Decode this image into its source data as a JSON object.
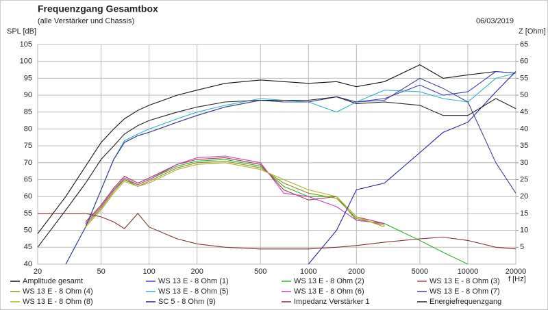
{
  "chart_data": {
    "type": "line",
    "title": "Frequenzgang Gesamtbox",
    "subtitle": "(alle Verstärker und Chassis)",
    "date": "06/03/2019",
    "ylabel": "SPL [dB]",
    "y2label": "Z [Ohm]",
    "xlabel": "f [Hz]",
    "xscale": "log",
    "grid": true,
    "legend": "bottom",
    "x": [
      20,
      30,
      40,
      50,
      60,
      70,
      85,
      100,
      150,
      200,
      300,
      500,
      700,
      1000,
      1500,
      2000,
      3000,
      5000,
      7000,
      10000,
      15000,
      20000
    ],
    "xlim": [
      20,
      20000
    ],
    "xticks": [
      20,
      50,
      100,
      200,
      500,
      1000,
      2000,
      5000,
      10000,
      20000
    ],
    "ylim": [
      40,
      105
    ],
    "yticks": [
      40,
      45,
      50,
      55,
      60,
      65,
      70,
      75,
      80,
      85,
      90,
      95,
      100,
      105
    ],
    "y2lim": [
      0,
      65
    ],
    "y2ticks": [
      5,
      10,
      15,
      20,
      25,
      30,
      35,
      40,
      45,
      50,
      55,
      60,
      65
    ],
    "series": [
      {
        "name": "Amplitude gesamt",
        "color": "#111111",
        "values": [
          49,
          60,
          69,
          76,
          80,
          83,
          85.5,
          87,
          90,
          91.5,
          93.5,
          94.5,
          94,
          93.5,
          94,
          92.5,
          94,
          99,
          95,
          96,
          97,
          96.5
        ]
      },
      {
        "name": "WS 13 E - 8 Ohm (1)",
        "color": "#3a3ad0",
        "values": [
          null,
          40,
          51,
          62,
          71,
          76,
          78,
          79,
          82,
          84,
          86.5,
          88.5,
          88,
          88,
          89.5,
          88,
          89,
          93,
          90,
          91,
          97,
          96.5
        ]
      },
      {
        "name": "WS 13 E - 8 Ohm (2)",
        "color": "#30b030",
        "values": [
          null,
          null,
          52,
          57,
          62,
          65,
          63.5,
          65,
          69,
          70.5,
          71,
          69,
          63,
          60,
          60,
          53,
          52,
          47,
          43.5,
          40,
          null,
          null
        ]
      },
      {
        "name": "WS 13 E - 8 Ohm (3)",
        "color": "#a04040",
        "values": [
          null,
          null,
          52.5,
          57.5,
          62.5,
          66,
          64,
          65.5,
          69.5,
          71,
          71.5,
          69.5,
          62,
          59,
          60,
          54,
          52,
          null,
          null,
          null,
          null,
          null
        ]
      },
      {
        "name": "WS 13 E - 8 Ohm (4)",
        "color": "#909020",
        "values": [
          null,
          null,
          51.5,
          56.5,
          61.5,
          65,
          63,
          64.5,
          68.5,
          70,
          70.5,
          68.5,
          64,
          61,
          59.5,
          53.5,
          51.5,
          null,
          null,
          null,
          null,
          null
        ]
      },
      {
        "name": "WS 13 E - 8 Ohm (5)",
        "color": "#30b0d0",
        "values": [
          null,
          40,
          51,
          62,
          71,
          76.5,
          78.5,
          80,
          83,
          85,
          87,
          89,
          88.5,
          88,
          85,
          88,
          91.5,
          91,
          89,
          88,
          95,
          96.5
        ]
      },
      {
        "name": "WS 13 E - 8 Ohm (6)",
        "color": "#c040c0",
        "values": [
          null,
          null,
          52,
          57,
          62,
          65.5,
          63.5,
          65,
          69.5,
          71.5,
          72,
          70,
          61,
          60,
          57,
          53,
          52,
          null,
          null,
          null,
          null,
          null
        ]
      },
      {
        "name": "WS 13 E - 8 Ohm (7)",
        "color": "#404090",
        "values": [
          null,
          40,
          51,
          62,
          71,
          76,
          78,
          79,
          82,
          84,
          86.5,
          88.5,
          88,
          88,
          89.5,
          88,
          88.5,
          95,
          92,
          88,
          70,
          61
        ]
      },
      {
        "name": "WS 13 E - 8 Ohm (8)",
        "color": "#b0b020",
        "values": [
          null,
          null,
          51,
          56,
          61,
          64.5,
          63,
          64,
          68,
          69.5,
          70,
          68,
          65,
          62,
          60,
          54,
          51,
          null,
          null,
          null,
          null,
          null
        ]
      },
      {
        "name": "SC 5 - 8 Ohm (9)",
        "color": "#2020a0",
        "values": [
          null,
          null,
          null,
          null,
          null,
          null,
          null,
          null,
          null,
          null,
          null,
          null,
          null,
          40,
          50,
          62,
          64,
          73,
          79,
          82,
          91,
          97
        ]
      },
      {
        "name": "Impedanz Verstärker 1",
        "color": "#803030",
        "axis": "y2",
        "values": [
          15,
          15,
          15,
          14,
          12.5,
          10.5,
          15,
          11,
          7.5,
          6,
          5,
          4.5,
          4.5,
          4.5,
          5,
          5.5,
          6.5,
          7.5,
          8,
          7,
          5,
          4.5
        ]
      },
      {
        "name": "Energiefrequenzgang",
        "color": "#202020",
        "values": [
          45,
          56,
          64,
          71,
          75,
          78.5,
          81,
          82.5,
          85,
          86.5,
          88,
          88.5,
          88.5,
          88.5,
          89.5,
          87.5,
          88,
          87,
          84,
          84,
          89,
          86
        ]
      }
    ]
  }
}
